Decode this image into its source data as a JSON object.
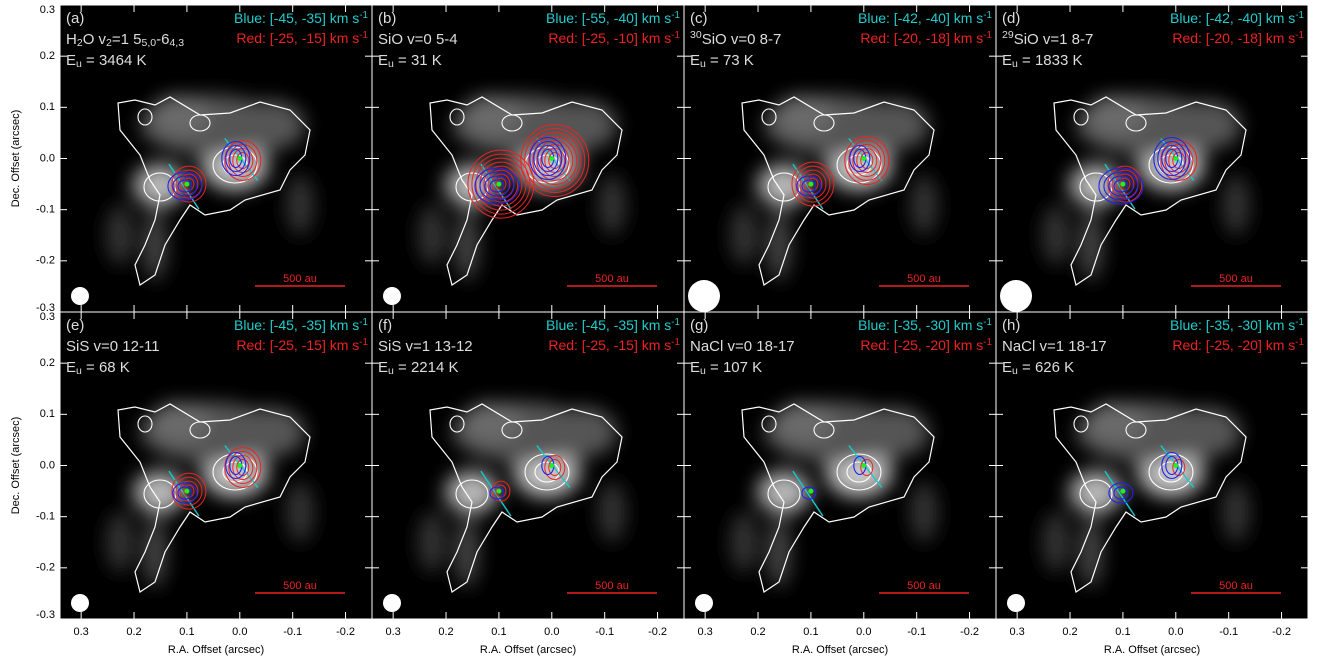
{
  "chart_data": {
    "type": "image-grid",
    "xlabel": "R.A. Offset (arcsec)",
    "ylabel": "Dec. Offset (arcsec)",
    "xlim": [
      0.34,
      -0.25
    ],
    "ylim": [
      -0.3,
      0.3
    ],
    "xticks": [
      0.3,
      0.2,
      0.1,
      {
        "value": 0,
        "label": "0.0"
      },
      -0.1,
      -0.2
    ],
    "yticks": [
      -0.3,
      -0.2,
      -0.1,
      {
        "value": 0,
        "label": "0.0"
      },
      0.1,
      0.2,
      0.3
    ],
    "panels": [
      {
        "label": "(a)",
        "scalebar": "500 au",
        "line": [
          {
            "text": "H"
          },
          {
            "text": "2",
            "script": "sub"
          },
          {
            "text": "O v"
          },
          {
            "text": "2",
            "script": "sub"
          },
          {
            "text": "=1 5"
          },
          {
            "text": "5,0",
            "script": "sub"
          },
          {
            "text": "-6"
          },
          {
            "text": "4,3",
            "script": "sub"
          }
        ],
        "eu": [
          {
            "text": "E"
          },
          {
            "text": "u",
            "script": "sub"
          },
          {
            "text": " = 3464 K"
          }
        ],
        "blue": [
          {
            "text": "Blue: [-45, -35] km s"
          },
          {
            "text": "-1",
            "script": "sup"
          }
        ],
        "red": [
          {
            "text": "Red: [-25, -15] km s"
          },
          {
            "text": "-1",
            "script": "sup"
          }
        ]
      },
      {
        "label": "(b)",
        "scalebar": "500 au",
        "line": [
          {
            "text": "SiO v=0 5-4"
          }
        ],
        "eu": [
          {
            "text": "E"
          },
          {
            "text": "u",
            "script": "sub"
          },
          {
            "text": " = 31 K"
          }
        ],
        "blue": [
          {
            "text": "Blue: [-55, -40] km s"
          },
          {
            "text": "-1",
            "script": "sup"
          }
        ],
        "red": [
          {
            "text": "Red: [-25, -10] km s"
          },
          {
            "text": "-1",
            "script": "sup"
          }
        ]
      },
      {
        "label": "(c)",
        "scalebar": "500 au",
        "line": [
          {
            "text": "30",
            "script": "sup"
          },
          {
            "text": "SiO v=0 8-7"
          }
        ],
        "eu": [
          {
            "text": "E"
          },
          {
            "text": "u",
            "script": "sub"
          },
          {
            "text": " = 73 K"
          }
        ],
        "blue": [
          {
            "text": "Blue: [-42, -40] km s"
          },
          {
            "text": "-1",
            "script": "sup"
          }
        ],
        "red": [
          {
            "text": "Red: [-20, -18] km s"
          },
          {
            "text": "-1",
            "script": "sup"
          }
        ]
      },
      {
        "label": "(d)",
        "scalebar": "500 au",
        "line": [
          {
            "text": "29",
            "script": "sup"
          },
          {
            "text": "SiO v=1 8-7"
          }
        ],
        "eu": [
          {
            "text": "E"
          },
          {
            "text": "u",
            "script": "sub"
          },
          {
            "text": " = 1833 K"
          }
        ],
        "blue": [
          {
            "text": "Blue: [-42, -40] km s"
          },
          {
            "text": "-1",
            "script": "sup"
          }
        ],
        "red": [
          {
            "text": "Red: [-20, -18] km s"
          },
          {
            "text": "-1",
            "script": "sup"
          }
        ]
      },
      {
        "label": "(e)",
        "scalebar": "500 au",
        "line": [
          {
            "text": "SiS v=0 12-11"
          }
        ],
        "eu": [
          {
            "text": "E"
          },
          {
            "text": "u",
            "script": "sub"
          },
          {
            "text": " = 68 K"
          }
        ],
        "blue": [
          {
            "text": "Blue: [-45, -35] km s"
          },
          {
            "text": "-1",
            "script": "sup"
          }
        ],
        "red": [
          {
            "text": "Red: [-25, -15] km s"
          },
          {
            "text": "-1",
            "script": "sup"
          }
        ]
      },
      {
        "label": "(f)",
        "scalebar": "500 au",
        "line": [
          {
            "text": "SiS v=1 13-12"
          }
        ],
        "eu": [
          {
            "text": "E"
          },
          {
            "text": "u",
            "script": "sub"
          },
          {
            "text": " = 2214 K"
          }
        ],
        "blue": [
          {
            "text": "Blue: [-45, -35] km s"
          },
          {
            "text": "-1",
            "script": "sup"
          }
        ],
        "red": [
          {
            "text": "Red: [-25, -15] km s"
          },
          {
            "text": "-1",
            "script": "sup"
          }
        ]
      },
      {
        "label": "(g)",
        "scalebar": "500 au",
        "line": [
          {
            "text": "NaCl v=0 18-17"
          }
        ],
        "eu": [
          {
            "text": "E"
          },
          {
            "text": "u",
            "script": "sub"
          },
          {
            "text": " = 107 K"
          }
        ],
        "blue": [
          {
            "text": "Blue: [-35, -30] km s"
          },
          {
            "text": "-1",
            "script": "sup"
          }
        ],
        "red": [
          {
            "text": "Red: [-25, -20] km s"
          },
          {
            "text": "-1",
            "script": "sup"
          }
        ]
      },
      {
        "label": "(h)",
        "scalebar": "500 au",
        "line": [
          {
            "text": "NaCl v=1 18-17"
          }
        ],
        "eu": [
          {
            "text": "E"
          },
          {
            "text": "u",
            "script": "sub"
          },
          {
            "text": " = 626 K"
          }
        ],
        "blue": [
          {
            "text": "Blue: [-35, -30] km s"
          },
          {
            "text": "-1",
            "script": "sup"
          }
        ],
        "red": [
          {
            "text": "Red: [-25, -20] km s"
          },
          {
            "text": "-1",
            "script": "sup"
          }
        ]
      }
    ]
  }
}
